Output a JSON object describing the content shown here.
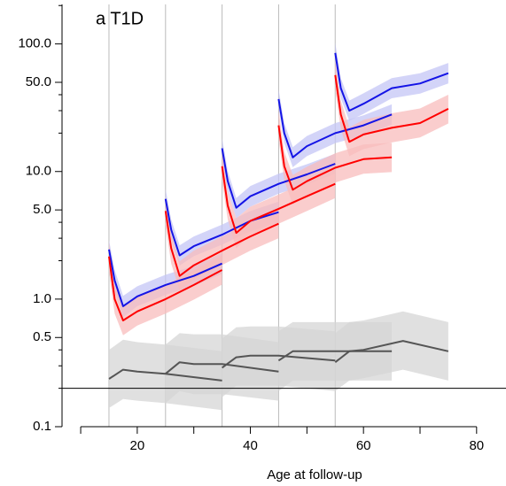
{
  "chart_data": {
    "type": "line",
    "title": "a   T1D",
    "xlabel": "Age at follow-up",
    "log_y": true,
    "xlim": [
      6.7,
      85.2
    ],
    "xticks": [
      20,
      40,
      60,
      80
    ],
    "xminor_ticks": [
      10,
      30,
      50,
      70
    ],
    "ylim": [
      0.1,
      204
    ],
    "yticks": [
      0.1,
      0.5,
      {
        "value": 1,
        "label": "1.0"
      },
      {
        "value": 5,
        "label": "5.0"
      },
      {
        "value": 10,
        "label": "10.0"
      },
      {
        "value": 50,
        "label": "50.0"
      },
      {
        "value": 100,
        "label": "100.0"
      }
    ],
    "yminor_ticks": [
      0.2,
      0.3,
      0.4,
      2,
      3,
      4,
      20,
      30,
      40,
      200
    ],
    "vlines": [
      15,
      25,
      35,
      45,
      55
    ],
    "hline": 0.2,
    "series": [
      {
        "color": "#1414e6",
        "band_color": "#c4c6f6",
        "x": [
          15,
          16,
          17.5,
          20,
          25,
          30,
          35
        ],
        "values": [
          2.45,
          1.4,
          0.88,
          1.05,
          1.29,
          1.52,
          1.9
        ],
        "lower": [
          2.0,
          1.15,
          0.72,
          0.88,
          1.08,
          1.27,
          1.58
        ],
        "upper": [
          2.9,
          1.7,
          1.06,
          1.26,
          1.55,
          1.82,
          2.3
        ]
      },
      {
        "color": "#ff0000",
        "band_color": "#f8bcbc",
        "x": [
          15,
          16,
          17.5,
          20,
          25,
          30,
          35
        ],
        "values": [
          2.16,
          1.0,
          0.68,
          0.8,
          1.0,
          1.29,
          1.69
        ],
        "lower": [
          1.65,
          0.77,
          0.52,
          0.62,
          0.77,
          0.99,
          1.3
        ],
        "upper": [
          2.8,
          1.3,
          0.88,
          1.04,
          1.3,
          1.68,
          2.2
        ]
      },
      {
        "color": "#1414e6",
        "band_color": "#c4c6f6",
        "x": [
          25,
          26,
          27.5,
          30,
          35,
          40,
          45
        ],
        "values": [
          6.1,
          3.5,
          2.2,
          2.6,
          3.2,
          4.1,
          4.8
        ],
        "lower": [
          5.1,
          2.9,
          1.83,
          2.17,
          2.67,
          3.4,
          4.0
        ],
        "upper": [
          7.3,
          4.2,
          2.64,
          3.1,
          3.84,
          4.9,
          5.8
        ]
      },
      {
        "color": "#ff0000",
        "band_color": "#f8bcbc",
        "x": [
          25,
          26,
          27.5,
          30,
          35,
          40,
          45
        ],
        "values": [
          4.9,
          2.5,
          1.52,
          1.84,
          2.4,
          3.1,
          3.9
        ],
        "lower": [
          3.8,
          1.9,
          1.17,
          1.42,
          1.85,
          2.4,
          3.0
        ],
        "upper": [
          6.4,
          3.25,
          1.98,
          2.4,
          3.1,
          4.0,
          5.1
        ]
      },
      {
        "color": "#1414e6",
        "band_color": "#c4c6f6",
        "x": [
          35,
          36,
          37.5,
          40,
          45,
          50,
          55
        ],
        "values": [
          15.2,
          8.4,
          5.2,
          6.4,
          8.0,
          9.5,
          11.5
        ],
        "lower": [
          12.7,
          7.0,
          4.3,
          5.3,
          6.7,
          7.9,
          9.6
        ],
        "upper": [
          18.2,
          10.1,
          6.2,
          7.7,
          9.6,
          11.4,
          13.8
        ]
      },
      {
        "color": "#ff0000",
        "band_color": "#f8bcbc",
        "x": [
          35,
          36,
          37.5,
          40,
          45,
          50,
          55
        ],
        "values": [
          11,
          5.4,
          3.3,
          4.1,
          5.1,
          6.4,
          8.0
        ],
        "lower": [
          8.5,
          4.2,
          2.5,
          3.2,
          3.9,
          4.9,
          6.2
        ],
        "upper": [
          14.3,
          7.0,
          4.3,
          5.3,
          6.6,
          8.3,
          10.4
        ]
      },
      {
        "color": "#1414e6",
        "band_color": "#c4c6f6",
        "x": [
          45,
          46,
          47.5,
          50,
          55,
          60,
          65
        ],
        "values": [
          37,
          20,
          12.9,
          15.8,
          20,
          23,
          28
        ],
        "lower": [
          31,
          16.7,
          10.8,
          13.2,
          16.7,
          19.2,
          23.3
        ],
        "upper": [
          44,
          24,
          15.5,
          19,
          24,
          27.6,
          33.6
        ]
      },
      {
        "color": "#ff0000",
        "band_color": "#f8bcbc",
        "x": [
          45,
          46,
          47.5,
          50,
          55,
          60,
          65
        ],
        "values": [
          23,
          11,
          7.2,
          8.4,
          10.7,
          12.5,
          12.9
        ],
        "lower": [
          17.7,
          8.5,
          5.5,
          6.5,
          8.2,
          9.6,
          9.9
        ],
        "upper": [
          30,
          14.3,
          9.4,
          10.9,
          13.9,
          16.3,
          16.8
        ]
      },
      {
        "color": "#1414e6",
        "band_color": "#c4c6f6",
        "x": [
          55,
          56,
          57.5,
          60,
          65,
          70,
          75
        ],
        "values": [
          85,
          45,
          30,
          34,
          45,
          49,
          59
        ],
        "lower": [
          71,
          37.5,
          25,
          28.3,
          37.5,
          40.8,
          49
        ],
        "upper": [
          102,
          54,
          36,
          41,
          54,
          59,
          71
        ]
      },
      {
        "color": "#ff0000",
        "band_color": "#f8bcbc",
        "x": [
          55,
          56,
          57.5,
          60,
          65,
          70,
          75
        ],
        "values": [
          57,
          28,
          17.1,
          19.5,
          22,
          24,
          31
        ],
        "lower": [
          44,
          21.5,
          13.2,
          15,
          16.9,
          18.5,
          23.8
        ],
        "upper": [
          74,
          36,
          22.2,
          25.4,
          28.6,
          31.2,
          40
        ]
      },
      {
        "color": "#555555",
        "band_color": "#d6d6d6",
        "x": [
          15,
          17.5,
          20,
          25,
          35
        ],
        "values": [
          0.237,
          0.28,
          0.27,
          0.26,
          0.23
        ],
        "lower": [
          0.14,
          0.165,
          0.16,
          0.153,
          0.135
        ],
        "upper": [
          0.4,
          0.48,
          0.46,
          0.44,
          0.39
        ]
      },
      {
        "color": "#555555",
        "band_color": "#d6d6d6",
        "x": [
          25,
          27.5,
          30,
          35,
          45
        ],
        "values": [
          0.26,
          0.32,
          0.31,
          0.31,
          0.27
        ],
        "lower": [
          0.153,
          0.19,
          0.18,
          0.18,
          0.16
        ],
        "upper": [
          0.44,
          0.54,
          0.53,
          0.53,
          0.46
        ]
      },
      {
        "color": "#555555",
        "band_color": "#d6d6d6",
        "x": [
          35,
          37.5,
          40,
          45,
          55
        ],
        "values": [
          0.29,
          0.35,
          0.36,
          0.36,
          0.33
        ],
        "lower": [
          0.17,
          0.21,
          0.21,
          0.21,
          0.19
        ],
        "upper": [
          0.49,
          0.6,
          0.61,
          0.61,
          0.56
        ]
      },
      {
        "color": "#555555",
        "band_color": "#d6d6d6",
        "x": [
          45,
          47.5,
          50,
          55,
          65
        ],
        "values": [
          0.33,
          0.39,
          0.39,
          0.39,
          0.39
        ],
        "lower": [
          0.19,
          0.23,
          0.23,
          0.23,
          0.23
        ],
        "upper": [
          0.56,
          0.66,
          0.66,
          0.66,
          0.66
        ]
      },
      {
        "color": "#555555",
        "band_color": "#d6d6d6",
        "x": [
          55,
          57.5,
          60,
          67,
          75
        ],
        "values": [
          0.32,
          0.39,
          0.4,
          0.47,
          0.39
        ],
        "lower": [
          0.19,
          0.23,
          0.24,
          0.28,
          0.23
        ],
        "upper": [
          0.54,
          0.66,
          0.68,
          0.8,
          0.66
        ]
      }
    ]
  }
}
